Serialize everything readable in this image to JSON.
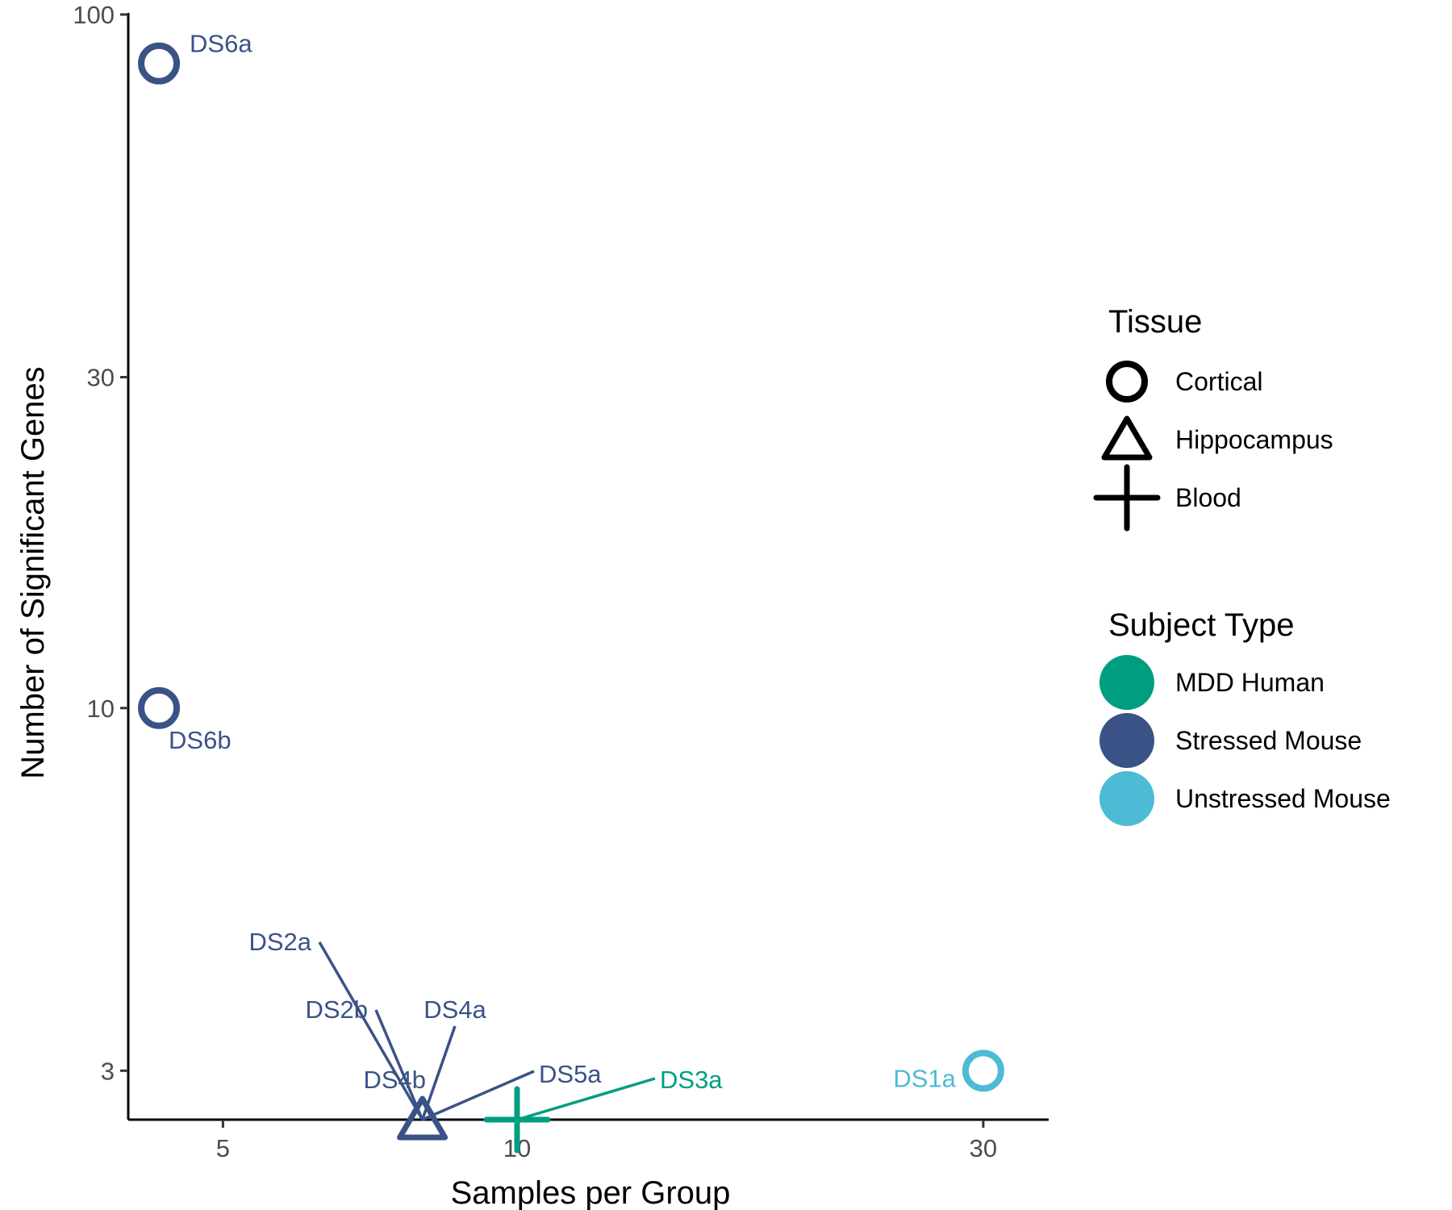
{
  "chart_data": {
    "type": "scatter",
    "xlabel": "Samples per Group",
    "ylabel": "Number of Significant Genes",
    "x_scale": "log",
    "y_scale": "log",
    "xlim": [
      4,
      35
    ],
    "ylim": [
      2.55,
      100
    ],
    "x_ticks": [
      {
        "value": 5,
        "label": "5"
      },
      {
        "value": 10,
        "label": "10"
      },
      {
        "value": 30,
        "label": "30"
      }
    ],
    "y_ticks": [
      {
        "value": 3,
        "label": "3"
      },
      {
        "value": 10,
        "label": "10"
      },
      {
        "value": 30,
        "label": "30"
      },
      {
        "value": 100,
        "label": "100"
      }
    ],
    "grid": false,
    "points": [
      {
        "label": "DS6a",
        "x": 4.3,
        "y": 85,
        "tissue": "Cortical",
        "subject": "Stressed Mouse"
      },
      {
        "label": "DS6b",
        "x": 4.3,
        "y": 10,
        "tissue": "Cortical",
        "subject": "Stressed Mouse"
      },
      {
        "label": "DS1a",
        "x": 30,
        "y": 3,
        "tissue": "Cortical",
        "subject": "Unstressed Mouse"
      },
      {
        "label": "DS2a",
        "x": 8,
        "y": 2.55,
        "tissue": "Hippocampus",
        "subject": "Stressed Mouse"
      },
      {
        "label": "DS2b",
        "x": 8,
        "y": 2.55,
        "tissue": "Hippocampus",
        "subject": "Stressed Mouse"
      },
      {
        "label": "DS4a",
        "x": 8,
        "y": 2.55,
        "tissue": "Hippocampus",
        "subject": "Stressed Mouse"
      },
      {
        "label": "DS4b",
        "x": 8,
        "y": 2.55,
        "tissue": "Hippocampus",
        "subject": "Stressed Mouse"
      },
      {
        "label": "DS5a",
        "x": 8,
        "y": 2.55,
        "tissue": "Hippocampus",
        "subject": "Stressed Mouse"
      },
      {
        "label": "DS3a",
        "x": 10,
        "y": 2.55,
        "tissue": "Blood",
        "subject": "MDD Human"
      }
    ],
    "legend": {
      "placement": "right",
      "tissue": {
        "title": "Tissue",
        "items": [
          {
            "label": "Cortical",
            "shape": "circle"
          },
          {
            "label": "Hippocampus",
            "shape": "triangle"
          },
          {
            "label": "Blood",
            "shape": "cross"
          }
        ]
      },
      "subject": {
        "title": "Subject Type",
        "items": [
          {
            "label": "MDD Human",
            "color": "#009E80"
          },
          {
            "label": "Stressed Mouse",
            "color": "#3B5287"
          },
          {
            "label": "Unstressed Mouse",
            "color": "#4DBBD5"
          }
        ]
      }
    }
  }
}
